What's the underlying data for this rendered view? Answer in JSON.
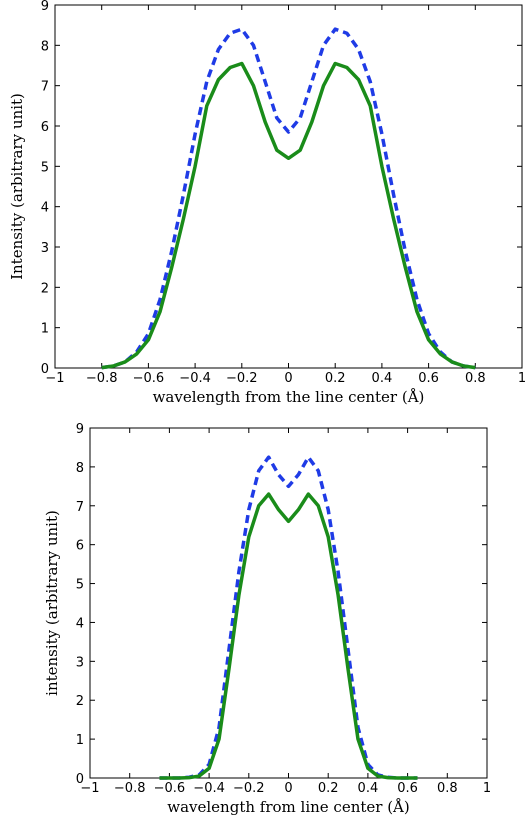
{
  "chart_data": [
    {
      "type": "line",
      "xlabel": "wavelength from the line center (Å)",
      "ylabel": "Intensity (arbitrary unit)",
      "x": [
        -0.8,
        -0.75,
        -0.7,
        -0.65,
        -0.6,
        -0.55,
        -0.5,
        -0.45,
        -0.4,
        -0.35,
        -0.3,
        -0.25,
        -0.2,
        -0.15,
        -0.1,
        -0.05,
        0,
        0.05,
        0.1,
        0.15,
        0.2,
        0.25,
        0.3,
        0.35,
        0.4,
        0.45,
        0.5,
        0.55,
        0.6,
        0.65,
        0.7,
        0.75,
        0.8
      ],
      "series": [
        {
          "color": "#1f3be6",
          "dashed": true,
          "values": [
            0.01,
            0.05,
            0.15,
            0.4,
            0.85,
            1.7,
            2.9,
            4.3,
            5.8,
            7.1,
            7.9,
            8.3,
            8.4,
            8.0,
            7.1,
            6.2,
            5.85,
            6.2,
            7.1,
            8.0,
            8.4,
            8.3,
            7.9,
            7.1,
            5.8,
            4.3,
            2.9,
            1.7,
            0.85,
            0.4,
            0.15,
            0.05,
            0.01
          ]
        },
        {
          "color": "#1a8c1a",
          "dashed": false,
          "values": [
            0.01,
            0.05,
            0.15,
            0.35,
            0.7,
            1.4,
            2.5,
            3.7,
            5.0,
            6.5,
            7.15,
            7.45,
            7.55,
            7.0,
            6.1,
            5.4,
            5.2,
            5.4,
            6.1,
            7.0,
            7.55,
            7.45,
            7.15,
            6.5,
            5.0,
            3.7,
            2.5,
            1.4,
            0.7,
            0.35,
            0.15,
            0.05,
            0.01
          ]
        }
      ],
      "xlim": [
        -1,
        1
      ],
      "xticks": [
        {
          "value": -1,
          "label": "−1"
        },
        {
          "value": -0.8,
          "label": "−0.8"
        },
        {
          "value": -0.6,
          "label": "−0.6"
        },
        {
          "value": -0.4,
          "label": "−0.4"
        },
        {
          "value": -0.2,
          "label": "−0.2"
        },
        0,
        0.2,
        0.4,
        0.6,
        0.8,
        1
      ],
      "ylim": [
        0,
        9
      ],
      "yticks": [
        0,
        1,
        2,
        3,
        4,
        5,
        6,
        7,
        8,
        9
      ]
    },
    {
      "type": "line",
      "xlabel": "wavelength from line center (Å)",
      "ylabel": "intensity (arbitrary unit)",
      "x": [
        -0.65,
        -0.6,
        -0.55,
        -0.5,
        -0.45,
        -0.4,
        -0.35,
        -0.3,
        -0.25,
        -0.2,
        -0.15,
        -0.1,
        -0.05,
        0,
        0.05,
        0.1,
        0.15,
        0.2,
        0.25,
        0.3,
        0.35,
        0.4,
        0.45,
        0.5,
        0.55,
        0.6,
        0.65
      ],
      "series": [
        {
          "color": "#1f3be6",
          "dashed": true,
          "values": [
            0,
            0,
            0,
            0.02,
            0.08,
            0.35,
            1.3,
            3.3,
            5.3,
            6.9,
            7.9,
            8.25,
            7.8,
            7.5,
            7.8,
            8.25,
            7.9,
            6.9,
            5.3,
            3.3,
            1.3,
            0.35,
            0.08,
            0.02,
            0,
            0,
            0
          ]
        },
        {
          "color": "#1a8c1a",
          "dashed": false,
          "values": [
            0,
            0,
            0,
            0.01,
            0.05,
            0.25,
            1.0,
            2.8,
            4.7,
            6.2,
            7.0,
            7.3,
            6.9,
            6.6,
            6.9,
            7.3,
            7.0,
            6.2,
            4.7,
            2.8,
            1.0,
            0.25,
            0.05,
            0.01,
            0,
            0,
            0
          ]
        }
      ],
      "xlim": [
        -1,
        1
      ],
      "xticks": [
        {
          "value": -1,
          "label": "−1"
        },
        {
          "value": -0.8,
          "label": "−0.8"
        },
        {
          "value": -0.6,
          "label": "−0.6"
        },
        {
          "value": -0.4,
          "label": "−0.4"
        },
        {
          "value": -0.2,
          "label": "−0.2"
        },
        0,
        0.2,
        0.4,
        0.6,
        0.8,
        1
      ],
      "ylim": [
        0,
        9
      ],
      "yticks": [
        0,
        1,
        2,
        3,
        4,
        5,
        6,
        7,
        8,
        9
      ]
    }
  ]
}
